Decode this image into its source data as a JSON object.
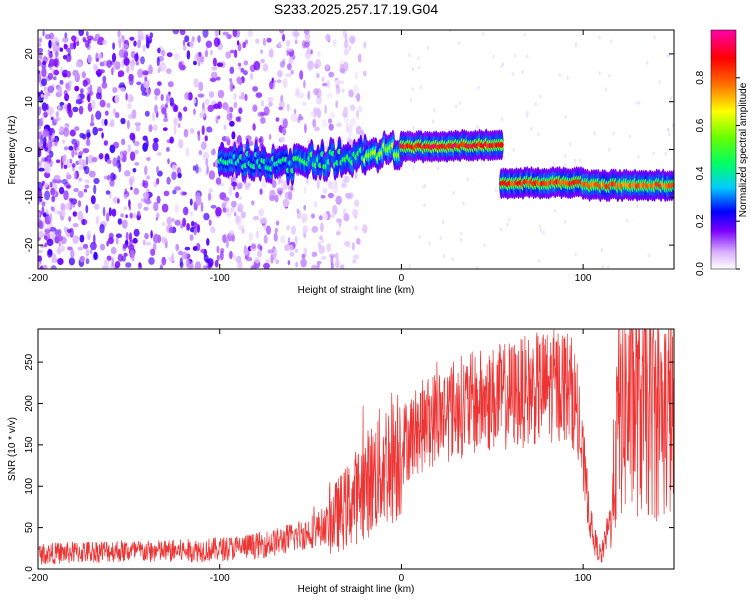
{
  "figure": {
    "title": "S233.2025.257.17.19.G04"
  },
  "colors": {
    "snr_line": "#ee3333",
    "axis": "#000000",
    "background": "#ffffff"
  },
  "chart_data": [
    {
      "type": "heatmap",
      "xlabel": "Height of straight line (km)",
      "ylabel": "Frequency (Hz)",
      "xlim": [
        -200,
        150
      ],
      "ylim": [
        -25,
        25
      ],
      "x_ticks": [
        -200,
        -100,
        0,
        100
      ],
      "y_ticks": [
        -20,
        -10,
        0,
        10,
        20
      ],
      "colorbar": {
        "label": "Normalized spectral amplitude",
        "range": [
          0,
          1
        ],
        "ticks": [
          0.0,
          0.2,
          0.4,
          0.6,
          0.8
        ],
        "colormap": "white-violet-blue-cyan-green-yellow-red-magenta"
      },
      "ridge": [
        {
          "x_start": -100,
          "x_end": -60,
          "freq_start": -2,
          "freq_end": -3,
          "amplitude": 0.45
        },
        {
          "x_start": -60,
          "x_end": -20,
          "freq_start": -3,
          "freq_end": -1,
          "amplitude": 0.5
        },
        {
          "x_start": -20,
          "x_end": 0,
          "freq_start": -1,
          "freq_end": 0,
          "amplitude": 0.65
        },
        {
          "x_start": 0,
          "x_end": 55,
          "freq_start": 0.5,
          "freq_end": 1,
          "amplitude": 0.95
        },
        {
          "x_start": 55,
          "x_end": 100,
          "freq_start": -7,
          "freq_end": -7,
          "amplitude": 0.9
        },
        {
          "x_start": 100,
          "x_end": 150,
          "freq_start": -7.5,
          "freq_end": -7.5,
          "amplitude": 0.85
        }
      ],
      "noise_region": {
        "x_start": -200,
        "x_end": -40,
        "freq_range": [
          -25,
          25
        ]
      }
    },
    {
      "type": "line",
      "xlabel": "Height of straight line (km)",
      "ylabel": "SNR (10 * v/v)",
      "xlim": [
        -200,
        150
      ],
      "ylim": [
        0,
        290
      ],
      "x_ticks": [
        -200,
        -100,
        0,
        100
      ],
      "y_ticks": [
        0,
        50,
        100,
        150,
        200,
        250
      ],
      "series": [
        {
          "x": [
            -200,
            -180,
            -160,
            -140,
            -120,
            -100,
            -90,
            -80,
            -70,
            -60,
            -50,
            -40,
            -30,
            -20,
            -10,
            0,
            10,
            20,
            30,
            40,
            50,
            60,
            70,
            80,
            90,
            95,
            100,
            105,
            110,
            115,
            120,
            130,
            140,
            150
          ],
          "values": [
            18,
            20,
            22,
            21,
            22,
            24,
            26,
            28,
            32,
            38,
            45,
            55,
            75,
            100,
            125,
            150,
            170,
            185,
            195,
            200,
            205,
            210,
            215,
            220,
            225,
            210,
            130,
            40,
            15,
            60,
            195,
            200,
            190,
            185
          ]
        }
      ]
    }
  ]
}
